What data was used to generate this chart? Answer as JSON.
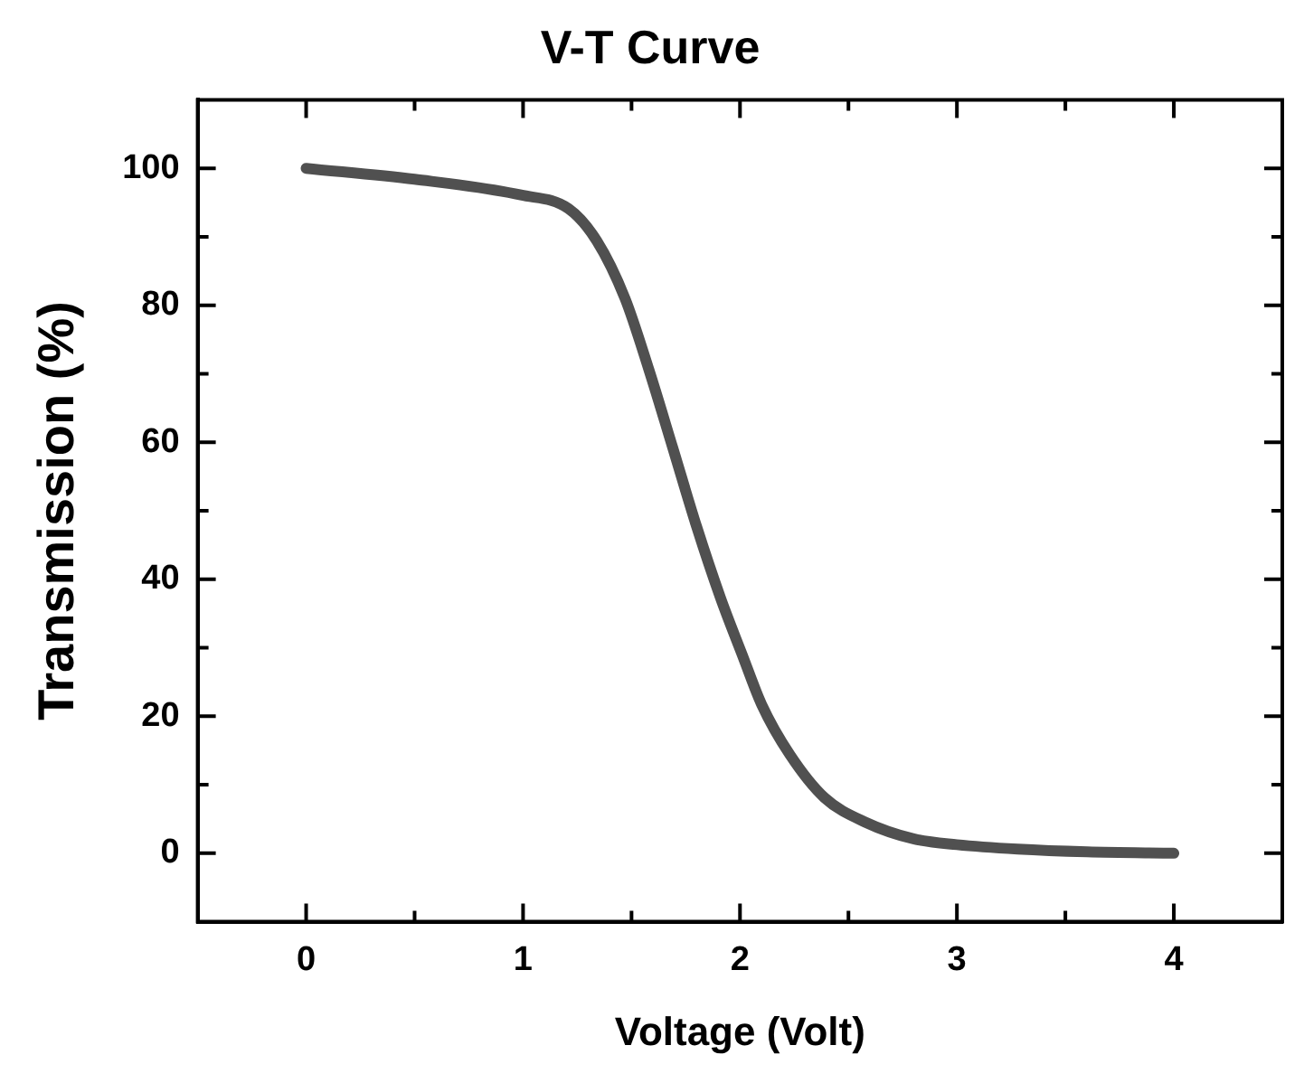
{
  "chart_data": {
    "type": "line",
    "title": "V-T Curve",
    "xlabel": "Voltage (Volt)",
    "ylabel": "Transmission (%)",
    "xlim": [
      -0.5,
      4.5
    ],
    "ylim": [
      -10,
      110
    ],
    "xticks": [
      0,
      {
        "value": 0.5,
        "label": null
      },
      1,
      {
        "value": 1.5,
        "label": null
      },
      2,
      {
        "value": 2.5,
        "label": null
      },
      3,
      {
        "value": 3.5,
        "label": null
      },
      4
    ],
    "yticks": [
      0,
      {
        "value": 10,
        "label": null
      },
      20,
      {
        "value": 30,
        "label": null
      },
      40,
      {
        "value": 50,
        "label": null
      },
      60,
      {
        "value": 70,
        "label": null
      },
      80,
      {
        "value": 90,
        "label": null
      },
      100
    ],
    "grid": false,
    "legend": false,
    "marker": "none",
    "line_style": "solid",
    "series": [
      {
        "color": "#505050",
        "x": [
          0,
          0.5,
          0.99,
          1.21,
          1.34,
          1.47,
          1.58,
          1.69,
          1.8,
          1.91,
          2.01,
          2.1,
          2.23,
          2.39,
          2.58,
          2.8,
          3.0,
          3.28,
          3.6,
          4
        ],
        "values": [
          100,
          98.4,
          96.1,
          94.1,
          89.4,
          81,
          70.6,
          59.2,
          47.7,
          37.3,
          29,
          21.7,
          14.4,
          8.1,
          4.5,
          2.1,
          1.25,
          0.6,
          0.2,
          0
        ]
      }
    ]
  }
}
